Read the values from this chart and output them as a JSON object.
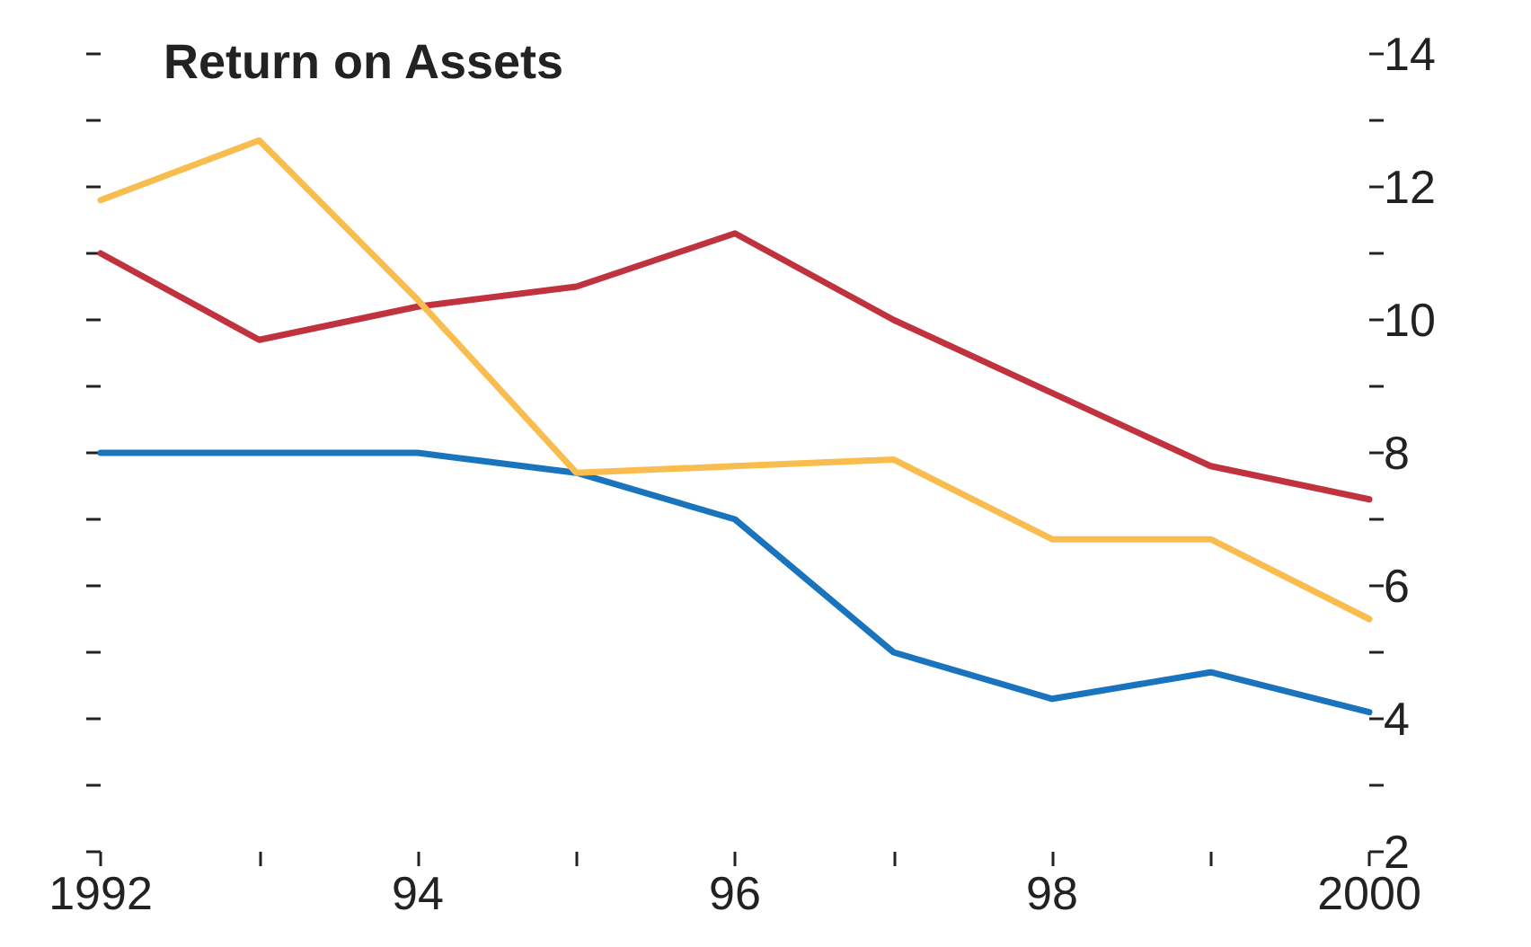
{
  "chart_data": {
    "type": "line",
    "title": "Return on Assets",
    "x": [
      1992,
      1993,
      1994,
      1995,
      1996,
      1997,
      1998,
      1999,
      2000
    ],
    "series": [
      {
        "color": "#f9bd4f",
        "values": [
          11.8,
          12.7,
          10.3,
          7.7,
          7.8,
          7.9,
          6.7,
          6.7,
          5.5
        ]
      },
      {
        "color": "#c1323f",
        "values": [
          11.0,
          9.7,
          10.2,
          10.5,
          11.3,
          10.0,
          8.9,
          7.8,
          7.3
        ]
      },
      {
        "color": "#1a74bd",
        "values": [
          8.0,
          8.0,
          8.0,
          7.7,
          7.0,
          5.0,
          4.3,
          4.7,
          4.1
        ]
      }
    ],
    "xlim": [
      1992,
      2000
    ],
    "xticks": [
      1992,
      {
        "value": 1993,
        "label": null
      },
      {
        "value": 1994,
        "label": "94"
      },
      {
        "value": 1995,
        "label": null
      },
      {
        "value": 1996,
        "label": "96"
      },
      {
        "value": 1997,
        "label": null
      },
      {
        "value": 1998,
        "label": "98"
      },
      {
        "value": 1999,
        "label": null
      },
      2000
    ],
    "ylim": [
      2,
      14
    ],
    "yticks": [
      2,
      {
        "value": 3,
        "label": null
      },
      4,
      {
        "value": 5,
        "label": null
      },
      6,
      {
        "value": 7,
        "label": null
      },
      8,
      {
        "value": 9,
        "label": null
      },
      10,
      {
        "value": 11,
        "label": null
      },
      12,
      {
        "value": 13,
        "label": null
      },
      14
    ],
    "grid": false,
    "marker": "none",
    "line_style": "solid"
  }
}
